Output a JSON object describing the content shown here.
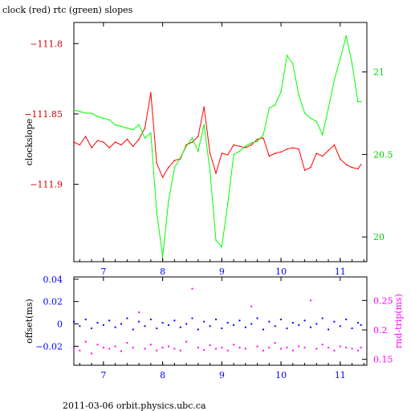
{
  "chart_data": [
    {
      "type": "line",
      "title": "clock (red) rtc (green) slopes",
      "xlabel": "",
      "ylabel": "clockslope",
      "xlim": [
        6.5,
        11.45
      ],
      "ylim": [
        -111.955,
        -111.785
      ],
      "y2lim": [
        19.85,
        21.3
      ],
      "x_ticks": [
        7,
        8,
        9,
        10,
        11
      ],
      "x_tick_labels": [
        "7",
        "8",
        "9",
        "10",
        "11"
      ],
      "y_ticks": [
        -111.8,
        -111.85,
        -111.9
      ],
      "y_tick_labels": [
        "−111.8",
        "−111.85",
        "−111.9"
      ],
      "y2_ticks": [
        21,
        20.5,
        20
      ],
      "y2_tick_labels": [
        "21",
        "20.5",
        "20"
      ],
      "series": [
        {
          "axis": "left",
          "color": "#ff0000",
          "x": [
            6.5,
            6.6,
            6.7,
            6.8,
            6.9,
            7.0,
            7.1,
            7.2,
            7.3,
            7.4,
            7.5,
            7.6,
            7.7,
            7.8,
            7.9,
            8.0,
            8.1,
            8.2,
            8.3,
            8.4,
            8.5,
            8.6,
            8.7,
            8.8,
            8.9,
            9.0,
            9.1,
            9.2,
            9.3,
            9.4,
            9.5,
            9.6,
            9.7,
            9.8,
            9.9,
            10.0,
            10.1,
            10.2,
            10.3,
            10.4,
            10.5,
            10.6,
            10.7,
            10.8,
            10.9,
            11.0,
            11.1,
            11.2,
            11.3,
            11.35
          ],
          "y": [
            -111.87,
            -111.872,
            -111.866,
            -111.874,
            -111.869,
            -111.87,
            -111.874,
            -111.87,
            -111.872,
            -111.868,
            -111.873,
            -111.868,
            -111.86,
            -111.835,
            -111.885,
            -111.895,
            -111.888,
            -111.883,
            -111.882,
            -111.872,
            -111.87,
            -111.866,
            -111.845,
            -111.878,
            -111.892,
            -111.878,
            -111.879,
            -111.872,
            -111.873,
            -111.874,
            -111.872,
            -111.868,
            -111.867,
            -111.88,
            -111.878,
            -111.877,
            -111.875,
            -111.874,
            -111.875,
            -111.89,
            -111.888,
            -111.878,
            -111.88,
            -111.876,
            -111.872,
            -111.882,
            -111.886,
            -111.888,
            -111.889,
            -111.886
          ]
        },
        {
          "axis": "right",
          "color": "#00ff00",
          "x": [
            6.5,
            6.6,
            6.7,
            6.8,
            6.9,
            7.0,
            7.1,
            7.2,
            7.3,
            7.4,
            7.5,
            7.6,
            7.7,
            7.8,
            7.9,
            8.0,
            8.1,
            8.2,
            8.3,
            8.4,
            8.5,
            8.6,
            8.7,
            8.8,
            8.9,
            9.0,
            9.1,
            9.2,
            9.3,
            9.4,
            9.5,
            9.6,
            9.7,
            9.8,
            9.9,
            10.0,
            10.1,
            10.2,
            10.3,
            10.4,
            10.5,
            10.6,
            10.7,
            10.8,
            10.9,
            11.0,
            11.1,
            11.2,
            11.3,
            11.35
          ],
          "y": [
            20.77,
            20.76,
            20.75,
            20.75,
            20.73,
            20.72,
            20.71,
            20.68,
            20.67,
            20.66,
            20.65,
            20.68,
            20.6,
            20.63,
            20.15,
            19.88,
            20.22,
            20.42,
            20.48,
            20.55,
            20.6,
            20.52,
            20.68,
            20.4,
            19.98,
            19.94,
            20.2,
            20.5,
            20.52,
            20.55,
            20.57,
            20.58,
            20.62,
            20.78,
            20.8,
            20.88,
            21.1,
            21.05,
            20.86,
            20.75,
            20.72,
            20.7,
            20.62,
            20.78,
            20.95,
            21.08,
            21.22,
            21.05,
            20.82,
            20.82
          ]
        }
      ],
      "annotations": [
        "2011-03-06 orbit.physics.ubc.ca"
      ]
    },
    {
      "type": "scatter",
      "xlabel": "",
      "ylabel": "offset(ms)",
      "y2label": "rnd-trip(ms)",
      "xlim": [
        6.5,
        11.45
      ],
      "ylim": [
        -0.037,
        0.042
      ],
      "y2lim": [
        0.14,
        0.29
      ],
      "x_ticks": [
        7,
        8,
        9,
        10,
        11
      ],
      "x_tick_labels": [
        "7",
        "8",
        "9",
        "10",
        "11"
      ],
      "y_ticks": [
        0.04,
        0.02,
        0,
        -0.02
      ],
      "y_tick_labels": [
        "0.04",
        "0.02",
        "0",
        "−0.02"
      ],
      "y2_ticks": [
        0.25,
        0.2,
        0.15
      ],
      "y2_tick_labels": [
        "0.25",
        "0.2",
        "0.15"
      ],
      "series": [
        {
          "axis": "left",
          "color": "#0000ff",
          "x": [
            6.5,
            6.6,
            6.7,
            6.8,
            6.9,
            7.0,
            7.1,
            7.2,
            7.3,
            7.4,
            7.5,
            7.6,
            7.7,
            7.8,
            7.9,
            8.0,
            8.1,
            8.2,
            8.3,
            8.4,
            8.5,
            8.6,
            8.7,
            8.8,
            8.9,
            9.0,
            9.1,
            9.2,
            9.3,
            9.4,
            9.5,
            9.6,
            9.7,
            9.8,
            9.9,
            10.0,
            10.1,
            10.2,
            10.3,
            10.4,
            10.5,
            10.6,
            10.7,
            10.8,
            10.9,
            11.0,
            11.1,
            11.2,
            11.3,
            11.35
          ],
          "y": [
            0.002,
            -0.002,
            0.004,
            -0.004,
            0.001,
            -0.001,
            0.003,
            -0.003,
            0.0,
            0.005,
            -0.005,
            0.002,
            -0.002,
            0.004,
            -0.004,
            0.001,
            -0.001,
            0.003,
            -0.003,
            0.0,
            0.005,
            -0.005,
            0.002,
            -0.002,
            0.004,
            -0.004,
            0.001,
            -0.001,
            0.003,
            -0.003,
            0.0,
            0.005,
            -0.005,
            0.002,
            -0.002,
            0.004,
            -0.004,
            0.001,
            -0.001,
            0.003,
            -0.003,
            0.0,
            0.005,
            -0.005,
            0.002,
            -0.002,
            0.004,
            -0.004,
            0.001,
            -0.001
          ]
        },
        {
          "axis": "right",
          "color": "#ff00ff",
          "x": [
            6.5,
            6.6,
            6.7,
            6.8,
            6.9,
            7.0,
            7.1,
            7.2,
            7.3,
            7.4,
            7.5,
            7.6,
            7.7,
            7.8,
            7.9,
            8.0,
            8.1,
            8.2,
            8.3,
            8.4,
            8.5,
            8.6,
            8.7,
            8.8,
            8.9,
            9.0,
            9.1,
            9.2,
            9.3,
            9.4,
            9.5,
            9.6,
            9.7,
            9.8,
            9.9,
            10.0,
            10.1,
            10.2,
            10.3,
            10.4,
            10.5,
            10.6,
            10.7,
            10.8,
            10.9,
            11.0,
            11.1,
            11.2,
            11.3,
            11.35
          ],
          "y": [
            0.17,
            0.165,
            0.18,
            0.16,
            0.175,
            0.17,
            0.168,
            0.172,
            0.164,
            0.178,
            0.17,
            0.23,
            0.168,
            0.175,
            0.165,
            0.17,
            0.172,
            0.168,
            0.165,
            0.18,
            0.27,
            0.17,
            0.166,
            0.174,
            0.168,
            0.17,
            0.165,
            0.175,
            0.17,
            0.168,
            0.24,
            0.172,
            0.165,
            0.17,
            0.178,
            0.168,
            0.17,
            0.165,
            0.172,
            0.17,
            0.25,
            0.168,
            0.175,
            0.17,
            0.165,
            0.172,
            0.17,
            0.168,
            0.165,
            0.17
          ]
        }
      ]
    }
  ],
  "colors": {
    "left_axis_top": "#cc0000",
    "right_axis_top": "#00cc00",
    "left_axis_bottom": "#0000ff",
    "right_axis_bottom": "#ff00ff",
    "axes": "#000000"
  }
}
